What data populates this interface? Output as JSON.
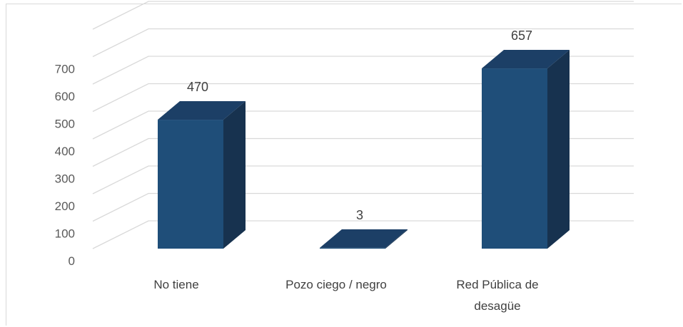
{
  "chart_data": {
    "type": "bar",
    "style": "3d-column",
    "categories": [
      "No tiene",
      "Pozo ciego / negro",
      "Red Pública de desagüe"
    ],
    "values": [
      470,
      3,
      657
    ],
    "data_labels": [
      "470",
      "3",
      "657"
    ],
    "yticks": [
      "0",
      "100",
      "200",
      "300",
      "400",
      "500",
      "600",
      "700"
    ],
    "ylim": [
      0,
      800
    ],
    "grid": true,
    "legend": "none",
    "colors": {
      "front": "#1f4e79",
      "side": "#17324f",
      "top": "#1c3f66",
      "grid": "#d9d9d9"
    }
  }
}
